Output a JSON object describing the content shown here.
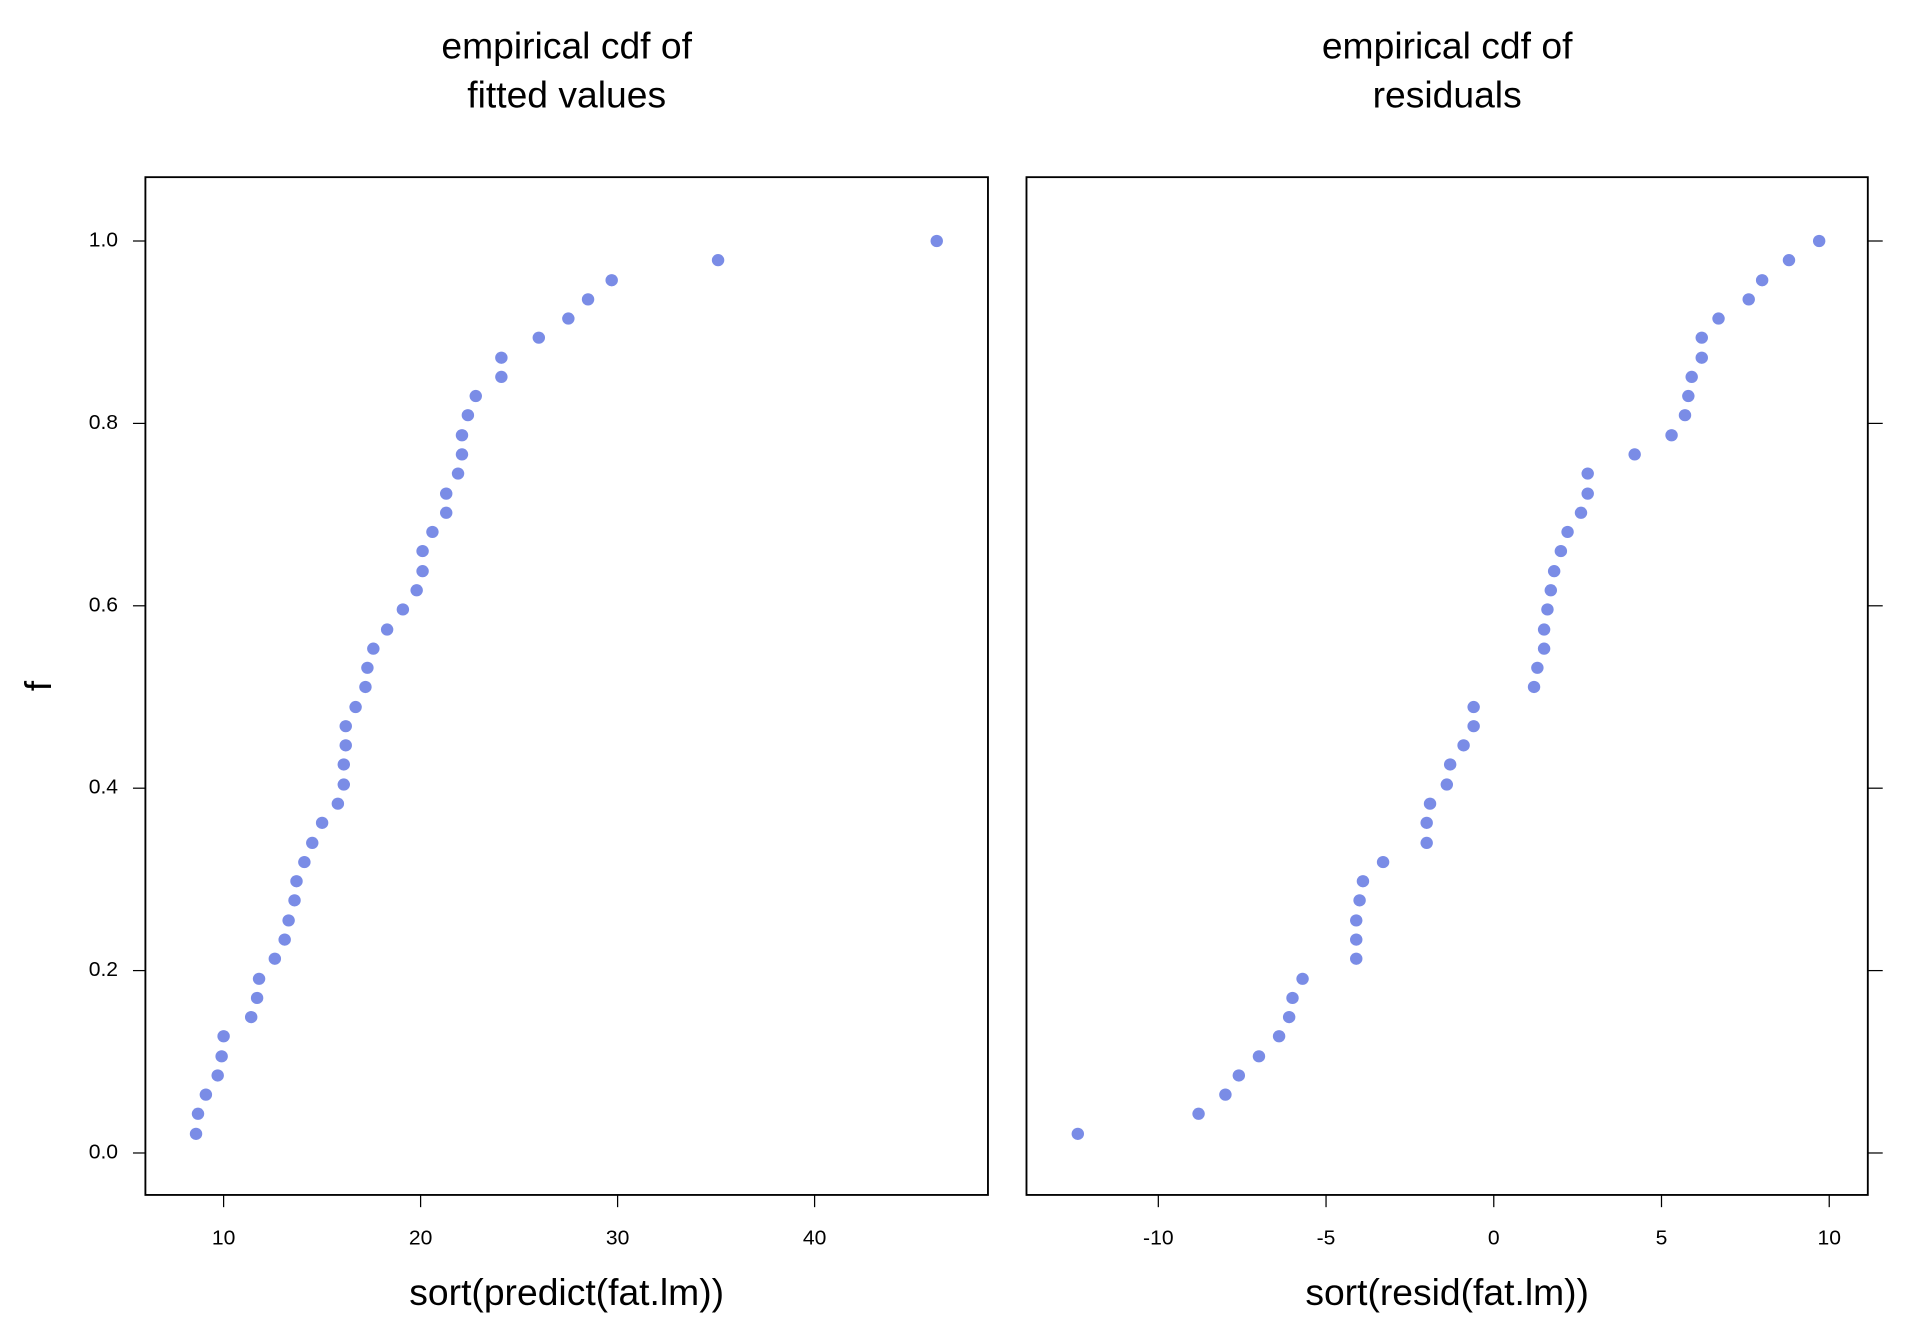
{
  "chart_data": [
    {
      "type": "scatter",
      "title": [
        "empirical cdf of",
        "fitted values"
      ],
      "x_label": "sort(predict(fat.lm))",
      "y_label": "f",
      "color": "#7a8ce6",
      "xlim": [
        6.03,
        48.8
      ],
      "ylim": [
        -0.046,
        1.07
      ],
      "xticks": [
        10,
        20,
        30,
        40
      ],
      "yticks": [
        {
          "value": 0,
          "label": "0.0"
        },
        0.2,
        0.4,
        0.6,
        0.8,
        {
          "value": 1,
          "label": "1.0"
        }
      ],
      "x": [
        8.6,
        8.7,
        9.1,
        9.7,
        9.9,
        10.0,
        11.4,
        11.7,
        11.8,
        12.6,
        13.1,
        13.3,
        13.6,
        13.7,
        14.1,
        14.5,
        15.0,
        15.8,
        16.1,
        16.1,
        16.2,
        16.2,
        16.7,
        17.2,
        17.3,
        17.6,
        18.3,
        19.1,
        19.8,
        20.1,
        20.1,
        20.6,
        21.3,
        21.3,
        21.9,
        22.1,
        22.1,
        22.4,
        22.8,
        24.1,
        24.1,
        26.0,
        27.5,
        28.5,
        29.7,
        35.1,
        46.2
      ],
      "y": [
        0.021,
        0.043,
        0.064,
        0.085,
        0.106,
        0.128,
        0.149,
        0.17,
        0.191,
        0.213,
        0.234,
        0.255,
        0.277,
        0.298,
        0.319,
        0.34,
        0.362,
        0.383,
        0.404,
        0.426,
        0.447,
        0.468,
        0.489,
        0.511,
        0.532,
        0.553,
        0.574,
        0.596,
        0.617,
        0.638,
        0.66,
        0.681,
        0.702,
        0.723,
        0.745,
        0.766,
        0.787,
        0.809,
        0.83,
        0.851,
        0.872,
        0.894,
        0.915,
        0.936,
        0.957,
        0.979,
        1.0
      ]
    },
    {
      "type": "scatter",
      "title": [
        "empirical cdf of",
        "residuals"
      ],
      "x_label": "sort(resid(fat.lm))",
      "color": "#7a8ce6",
      "xlim": [
        -13.93,
        11.15
      ],
      "ylim": [
        -0.046,
        1.07
      ],
      "xticks": [
        -10,
        -5,
        0,
        5,
        10
      ],
      "yticks": [
        0,
        0.2,
        0.4,
        0.6,
        0.8,
        1
      ],
      "x": [
        -12.4,
        -8.8,
        -8.0,
        -7.6,
        -7.0,
        -6.4,
        -6.1,
        -6.0,
        -5.7,
        -4.1,
        -4.1,
        -4.1,
        -4.0,
        -3.9,
        -3.3,
        -2.0,
        -2.0,
        -1.9,
        -1.4,
        -1.3,
        -0.9,
        -0.6,
        -0.6,
        1.2,
        1.3,
        1.5,
        1.5,
        1.6,
        1.7,
        1.8,
        2.0,
        2.2,
        2.6,
        2.8,
        2.8,
        4.2,
        5.3,
        5.7,
        5.8,
        5.9,
        6.2,
        6.2,
        6.7,
        7.6,
        8.0,
        8.8,
        9.7
      ],
      "y": [
        0.021,
        0.043,
        0.064,
        0.085,
        0.106,
        0.128,
        0.149,
        0.17,
        0.191,
        0.213,
        0.234,
        0.255,
        0.277,
        0.298,
        0.319,
        0.34,
        0.362,
        0.383,
        0.404,
        0.426,
        0.447,
        0.468,
        0.489,
        0.511,
        0.532,
        0.553,
        0.574,
        0.596,
        0.617,
        0.638,
        0.66,
        0.681,
        0.702,
        0.723,
        0.745,
        0.766,
        0.787,
        0.809,
        0.83,
        0.851,
        0.872,
        0.894,
        0.915,
        0.936,
        0.957,
        0.979,
        1.0
      ]
    }
  ]
}
